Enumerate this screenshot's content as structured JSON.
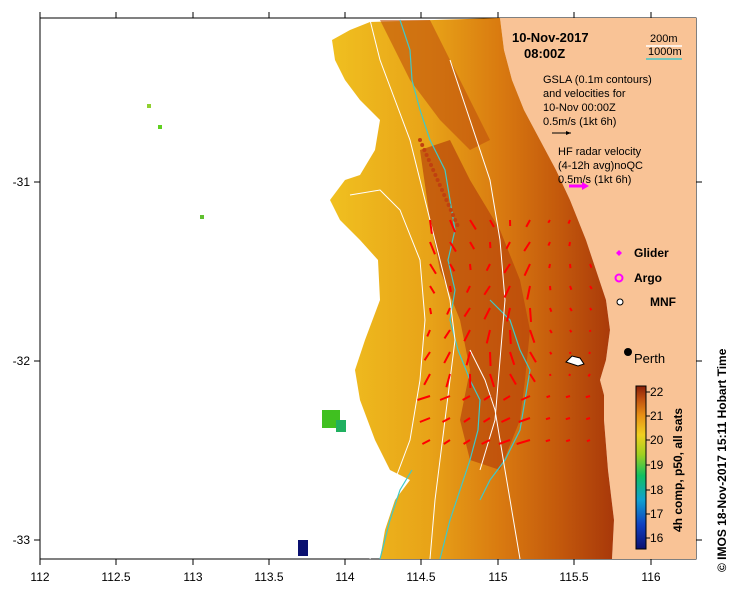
{
  "map": {
    "date": "10-Nov-2017",
    "time": "08:00Z",
    "depth_legend": {
      "contour_200": "200m",
      "contour_1000": "1000m"
    },
    "gsla_text": [
      "GSLA (0.1m contours)",
      "and velocities for",
      "10-Nov 00:00Z",
      "0.5m/s (1kt 6h)"
    ],
    "hf_text": [
      "HF radar velocity",
      "(4-12h avg)noQC",
      "0.5m/s (1kt 6h)"
    ],
    "markers": {
      "glider": "Glider",
      "argo": "Argo",
      "mnf": "MNF"
    },
    "city": "Perth",
    "colorbar_label": "4h comp, p50, all sats",
    "colorbar_ticks": [
      "22",
      "21",
      "20",
      "19",
      "18",
      "17",
      "16"
    ],
    "credit": "© IMOS 18-Nov-2017 15:11 Hobart Time",
    "x_ticks": [
      "112",
      "112.5",
      "113",
      "113.5",
      "114",
      "114.5",
      "115",
      "115.5",
      "116"
    ],
    "y_ticks": [
      "-31",
      "-32",
      "-33"
    ],
    "colors": {
      "land": "#f9c396",
      "ocean_warm": "#d97a10",
      "ocean_hot": "#b03a08",
      "ocean_cool": "#f0c020",
      "vector": "#ff0000",
      "hf_arrow": "#ff00ff",
      "contour_1000": "#40c8c8"
    }
  },
  "chart_data": {
    "type": "heatmap",
    "xlim": [
      112,
      116.3
    ],
    "ylim": [
      -33.1,
      -30.1
    ],
    "xticks": [
      112,
      112.5,
      113,
      113.5,
      114,
      114.5,
      115,
      115.5,
      116
    ],
    "yticks": [
      -31,
      -32,
      -33
    ],
    "colorbar_range": [
      15.5,
      22.2
    ],
    "colorbar_ticks": [
      16,
      17,
      18,
      19,
      20,
      21,
      22
    ],
    "city": {
      "name": "Perth",
      "lon": 115.86,
      "lat": -31.95
    }
  }
}
